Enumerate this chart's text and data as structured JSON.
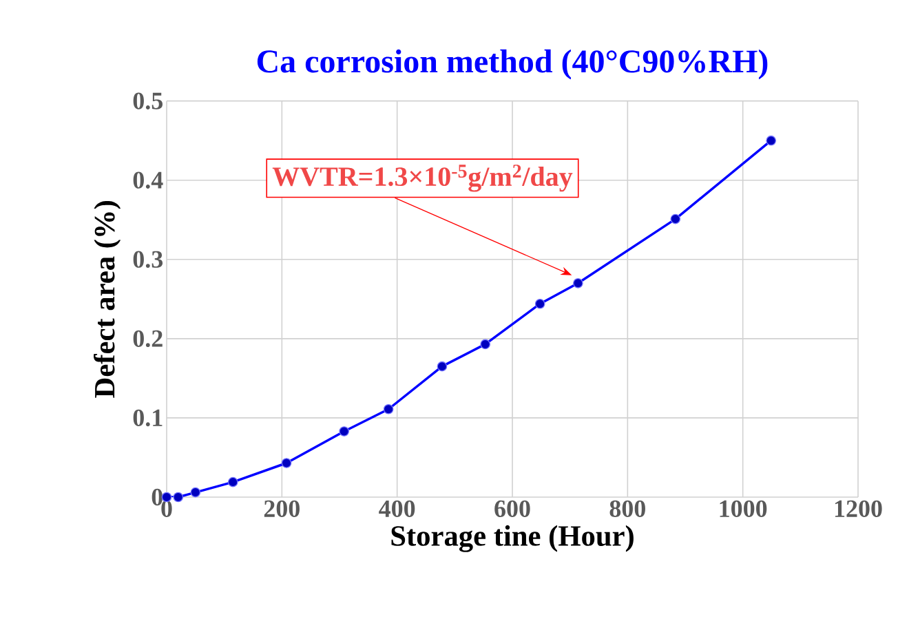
{
  "chart_data": {
    "type": "line",
    "title": "Ca corrosion method (40°C90%RH)",
    "xlabel": "Storage tine (Hour)",
    "ylabel": "Defect area (%)",
    "x": [
      0,
      20,
      50,
      115,
      208,
      308,
      385,
      478,
      553,
      648,
      714,
      883,
      1049
    ],
    "series": [
      {
        "color": "#0000ff",
        "values": [
          0,
          0,
          0.006,
          0.019,
          0.043,
          0.083,
          0.111,
          0.165,
          0.193,
          0.244,
          0.27,
          0.351,
          0.45
        ]
      }
    ],
    "xlim": [
      0,
      1200
    ],
    "xticks": [
      0,
      200,
      400,
      600,
      800,
      1000,
      1200
    ],
    "ylim": [
      0,
      0.5
    ],
    "yticks": [
      0,
      0.1,
      0.2,
      0.3,
      0.4,
      0.5
    ],
    "grid": true,
    "marker": "circle",
    "line_style": "solid",
    "annotations": [
      "WVTR=1.3×10$^{-5}$g/m$^{2}$/day"
    ]
  }
}
